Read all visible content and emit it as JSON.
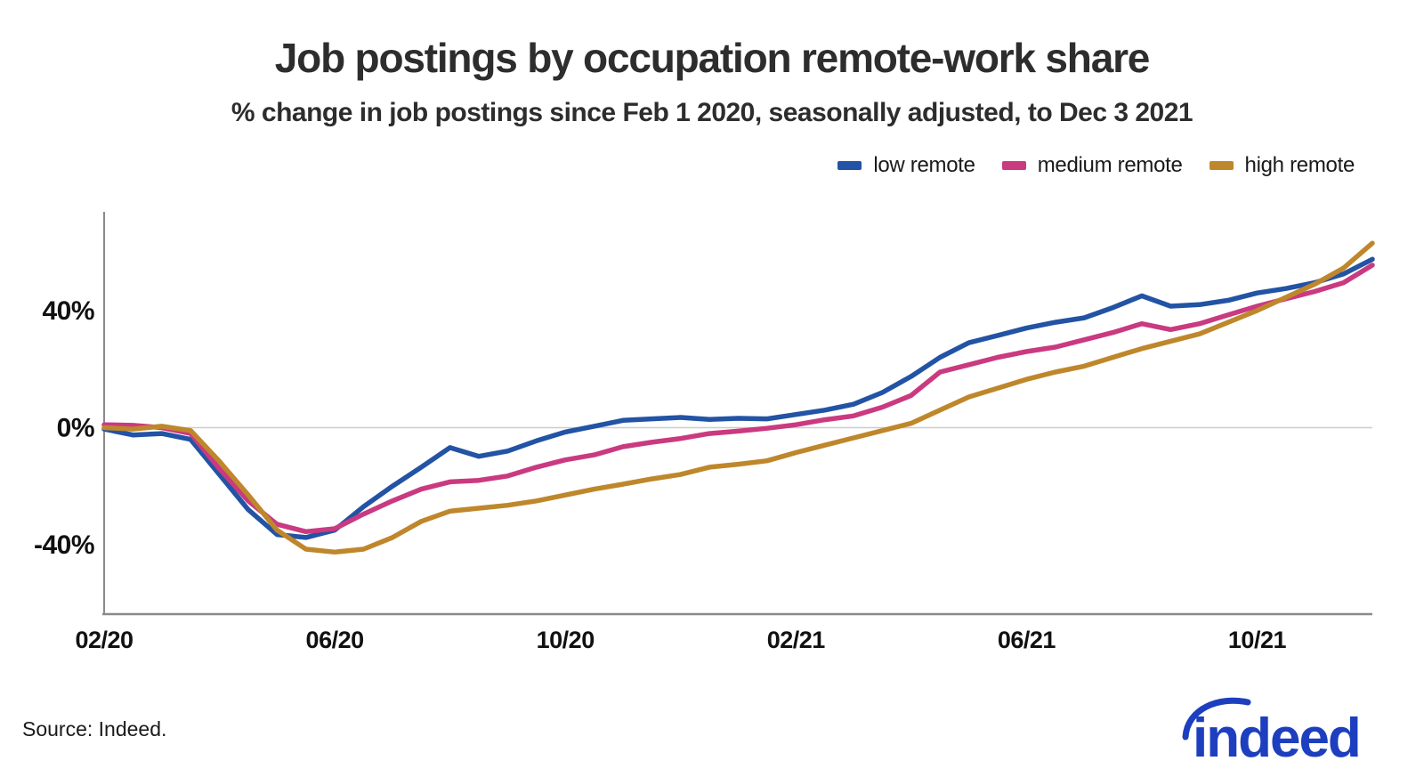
{
  "title": "Job postings by occupation remote-work share",
  "subtitle": "% change in job postings since Feb 1 2020, seasonally adjusted, to Dec 3 2021",
  "source": "Source: Indeed.",
  "logo_text": "indeed",
  "colors": {
    "low_remote": "#2253a4",
    "medium_remote": "#ca3a80",
    "high_remote": "#bf872b",
    "axis": "#8a8a8a",
    "gridline": "#cccccc",
    "logo_blue": "#1d3fbf",
    "text": "#2d2d2d"
  },
  "legend": [
    {
      "label": "low remote",
      "color": "#2253a4"
    },
    {
      "label": "medium remote",
      "color": "#ca3a80"
    },
    {
      "label": "high remote",
      "color": "#bf872b"
    }
  ],
  "chart_data": {
    "type": "line",
    "title": "Job postings by occupation remote-work share",
    "subtitle": "% change in job postings since Feb 1 2020, seasonally adjusted, to Dec 3 2021",
    "x_unit": "months since Feb 1 2020",
    "xlim": [
      0,
      22
    ],
    "ylim": [
      -63,
      74
    ],
    "grid": "horizontal line at 0% only",
    "legend_position": "top-right",
    "x": [
      0,
      0.5,
      1,
      1.5,
      2,
      2.5,
      3,
      3.5,
      4,
      4.5,
      5,
      5.5,
      6,
      6.5,
      7,
      7.5,
      8,
      8.5,
      9,
      9.5,
      10,
      10.5,
      11,
      11.5,
      12,
      12.5,
      13,
      13.5,
      14,
      14.5,
      15,
      15.5,
      16,
      16.5,
      17,
      17.5,
      18,
      18.5,
      19,
      19.5,
      20,
      20.5,
      21,
      21.5,
      22
    ],
    "series": [
      {
        "name": "low remote",
        "color": "#2253a4",
        "values": [
          -0.5,
          -2.5,
          -2,
          -4,
          -16,
          -28,
          -36.5,
          -37.5,
          -35,
          -27,
          -20,
          -13.5,
          -6.8,
          -9.8,
          -8,
          -4.5,
          -1.5,
          0.5,
          2.5,
          3,
          3.5,
          2.8,
          3.2,
          3,
          4.5,
          6,
          8,
          12,
          17.5,
          24,
          29,
          31.5,
          34,
          36,
          37.5,
          41,
          45,
          41.5,
          42,
          43.5,
          46,
          47.5,
          49.5,
          52.5,
          57.5
        ]
      },
      {
        "name": "medium remote",
        "color": "#ca3a80",
        "values": [
          1,
          0.8,
          0,
          -2,
          -14,
          -25,
          -33,
          -35.5,
          -34.5,
          -29.5,
          -25,
          -21,
          -18.5,
          -18,
          -16.5,
          -13.5,
          -11,
          -9.3,
          -6.5,
          -5,
          -3.7,
          -2,
          -1.2,
          -0.2,
          1,
          2.7,
          4,
          7,
          11,
          19,
          21.5,
          24,
          26,
          27.5,
          30,
          32.5,
          35.5,
          33.5,
          35.5,
          38.5,
          41.5,
          44,
          46.5,
          49.5,
          55.5
        ]
      },
      {
        "name": "high remote",
        "color": "#bf872b",
        "values": [
          0,
          -0.5,
          0.5,
          -1,
          -11.5,
          -23,
          -35,
          -41.5,
          -42.5,
          -41.5,
          -37.5,
          -32,
          -28.5,
          -27.5,
          -26.5,
          -25,
          -23,
          -21,
          -19.3,
          -17.5,
          -16,
          -13.5,
          -12.5,
          -11.3,
          -8.5,
          -6,
          -3.5,
          -1,
          1.5,
          6,
          10.5,
          13.5,
          16.5,
          19,
          21,
          24,
          27,
          29.5,
          32,
          36,
          40,
          44.5,
          49,
          54.5,
          63
        ]
      }
    ],
    "x_ticks": [
      {
        "t": 0,
        "label": "02/20"
      },
      {
        "t": 4,
        "label": "06/20"
      },
      {
        "t": 8,
        "label": "10/20"
      },
      {
        "t": 12,
        "label": "02/21"
      },
      {
        "t": 16,
        "label": "06/21"
      },
      {
        "t": 20,
        "label": "10/21"
      }
    ],
    "y_ticks": [
      {
        "v": 40,
        "label": "40%"
      },
      {
        "v": 0,
        "label": "0%"
      },
      {
        "v": -40,
        "label": "-40%"
      }
    ]
  }
}
